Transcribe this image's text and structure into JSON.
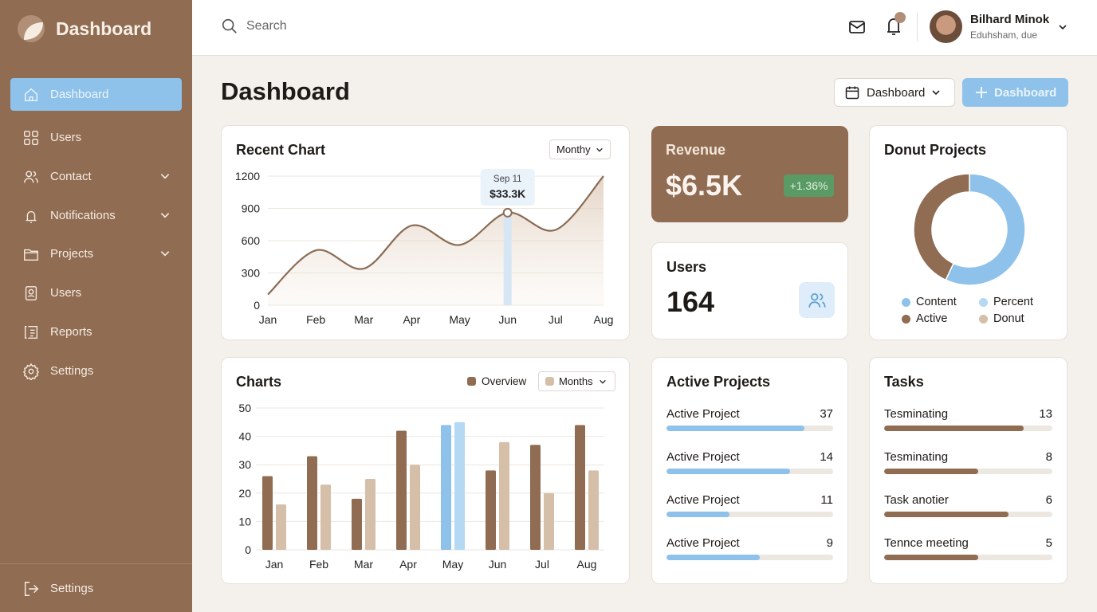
{
  "colors": {
    "sidebar": "#8f6c52",
    "accent_blue": "#8ec2ea",
    "light_blue": "#b5d8f3",
    "tan": "#d6bfa9",
    "green_badge": "#5a9a64"
  },
  "sidebar": {
    "logo_text": "Dashboard",
    "items": [
      {
        "label": "Dashboard",
        "icon": "home-icon",
        "active": true
      },
      {
        "label": "Users",
        "icon": "grid-icon"
      },
      {
        "label": "Contact",
        "icon": "contacts-icon",
        "expandable": true
      },
      {
        "label": "Notifications",
        "icon": "bell-icon",
        "expandable": true
      },
      {
        "label": "Projects",
        "icon": "folder-icon",
        "expandable": true
      },
      {
        "label": "Users",
        "icon": "user-badge-icon"
      },
      {
        "label": "Reports",
        "icon": "reports-icon"
      },
      {
        "label": "Settings",
        "icon": "gear-icon"
      }
    ],
    "footer": {
      "label": "Settings",
      "icon": "logout-icon"
    }
  },
  "topbar": {
    "search_placeholder": "Search",
    "user": {
      "name": "Bilhard Minok",
      "subtitle": "Eduhsham, due"
    }
  },
  "page": {
    "title": "Dashboard",
    "select_label": "Dashboard",
    "add_label": "Dashboard"
  },
  "recent_chart": {
    "title": "Recent Chart",
    "period": "Monthy",
    "tooltip": {
      "date": "Sep 11",
      "value": "$33.3K"
    }
  },
  "revenue": {
    "title": "Revenue",
    "value": "$6.5K",
    "change": "+1.36%"
  },
  "users_card": {
    "title": "Users",
    "value": "164"
  },
  "donut": {
    "title": "Donut Projects",
    "legend": [
      {
        "label": "Content",
        "color": "#8ec2ea"
      },
      {
        "label": "Percent",
        "color": "#b5d8f3"
      },
      {
        "label": "Active",
        "color": "#8f6c52"
      },
      {
        "label": "Donut",
        "color": "#d6bfa9"
      }
    ]
  },
  "charts_card": {
    "title": "Charts",
    "legend_label": "Overview",
    "period": "Months"
  },
  "active_projects": {
    "title": "Active Projects",
    "items": [
      {
        "label": "Active Project",
        "value": "37",
        "progress": 0.83
      },
      {
        "label": "Active Project",
        "value": "14",
        "progress": 0.74
      },
      {
        "label": "Active Project",
        "value": "11",
        "progress": 0.38
      },
      {
        "label": "Active Project",
        "value": "9",
        "progress": 0.56
      }
    ]
  },
  "tasks": {
    "title": "Tasks",
    "items": [
      {
        "label": "Tesminating",
        "value": "13",
        "progress": 0.83
      },
      {
        "label": "Tesminating",
        "value": "8",
        "progress": 0.56
      },
      {
        "label": "Task anotier",
        "value": "6",
        "progress": 0.74
      },
      {
        "label": "Tennce meeting",
        "value": "5",
        "progress": 0.56
      }
    ]
  },
  "chart_data": [
    {
      "type": "area",
      "categories": [
        "Jan",
        "Feb",
        "Mar",
        "Apr",
        "May",
        "Jun",
        "Jul",
        "Aug"
      ],
      "values": [
        100,
        510,
        340,
        740,
        560,
        860,
        700,
        1200
      ],
      "yticks": [
        0,
        300,
        600,
        900,
        1200
      ],
      "ylim": [
        0,
        1200
      ],
      "grid": true,
      "highlight": "Jun"
    },
    {
      "type": "bar",
      "categories": [
        "Jan",
        "Feb",
        "Mar",
        "Apr",
        "May",
        "Jun",
        "Jul",
        "Aug"
      ],
      "series": [
        {
          "name": "Overview",
          "values": [
            26,
            33,
            18,
            42,
            44,
            28,
            37,
            44
          ]
        },
        {
          "values": [
            16,
            23,
            25,
            30,
            45,
            38,
            20,
            28
          ]
        }
      ],
      "yticks": [
        0,
        10,
        20,
        30,
        40,
        50
      ],
      "ylim": [
        0,
        50
      ],
      "grid": true,
      "highlight": "May"
    },
    {
      "type": "pie",
      "donut": true,
      "slices": [
        {
          "label": "Content",
          "value": 57
        },
        {
          "label": "Active",
          "value": 43
        }
      ]
    }
  ]
}
